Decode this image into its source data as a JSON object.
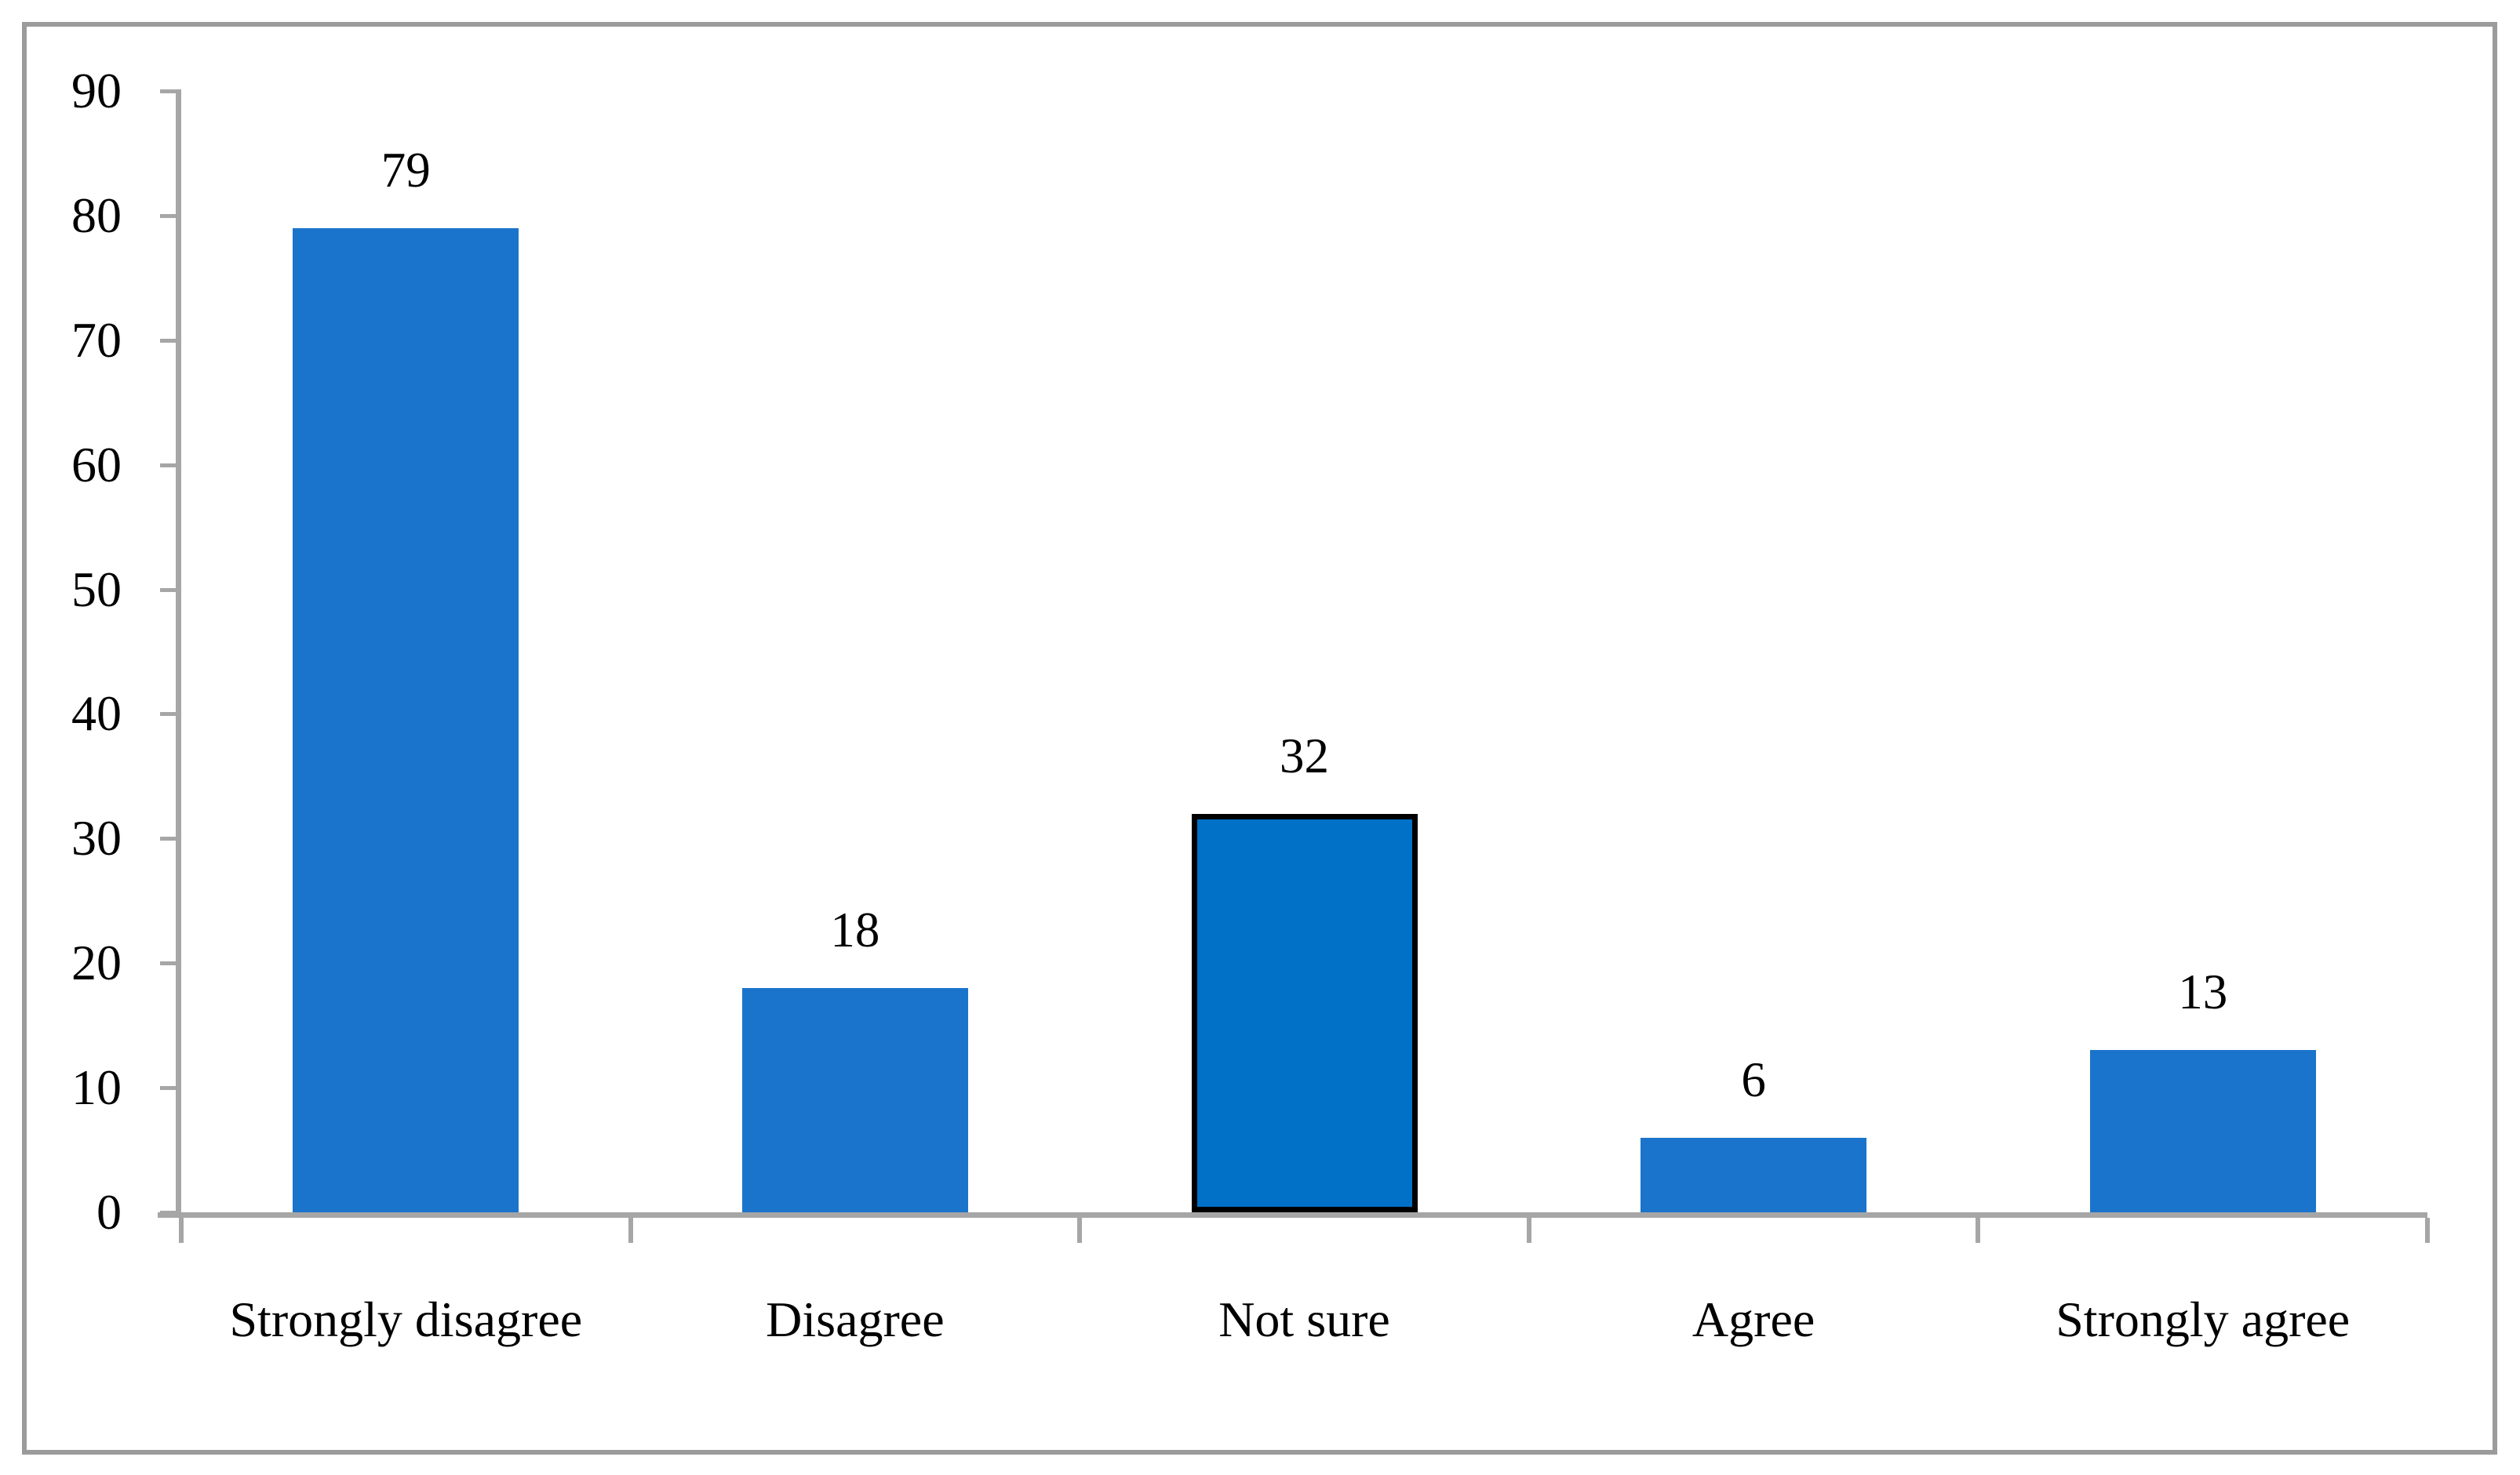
{
  "figure": {
    "background_color": "#ffffff",
    "frame_color": "#9b9b9b",
    "title": ""
  },
  "chart_data": {
    "type": "bar",
    "title": "",
    "xlabel": "",
    "ylabel": "",
    "categories": [
      "Strongly disagree",
      "Disagree",
      "Not sure",
      "Agree",
      "Strongly agree"
    ],
    "values": [
      79,
      18,
      32,
      6,
      13
    ],
    "data_labels": [
      "79",
      "18",
      "32",
      "6",
      "13"
    ],
    "highlighted_category": "Not sure",
    "ylim": [
      0,
      90
    ],
    "ytick_interval": 10,
    "yticks": [
      0,
      10,
      20,
      30,
      40,
      50,
      60,
      70,
      80,
      90
    ],
    "ytick_labels": [
      "0",
      "10",
      "20",
      "30",
      "40",
      "50",
      "60",
      "70",
      "80",
      "90"
    ],
    "grid": false,
    "legend_position": "none",
    "colors": {
      "bar_fill": "#1b74cb",
      "highlight_bar_fill": "#0071c7",
      "highlight_bar_border": "#000000",
      "axis_line": "#a6a6a6",
      "label_text": "#000000"
    }
  }
}
